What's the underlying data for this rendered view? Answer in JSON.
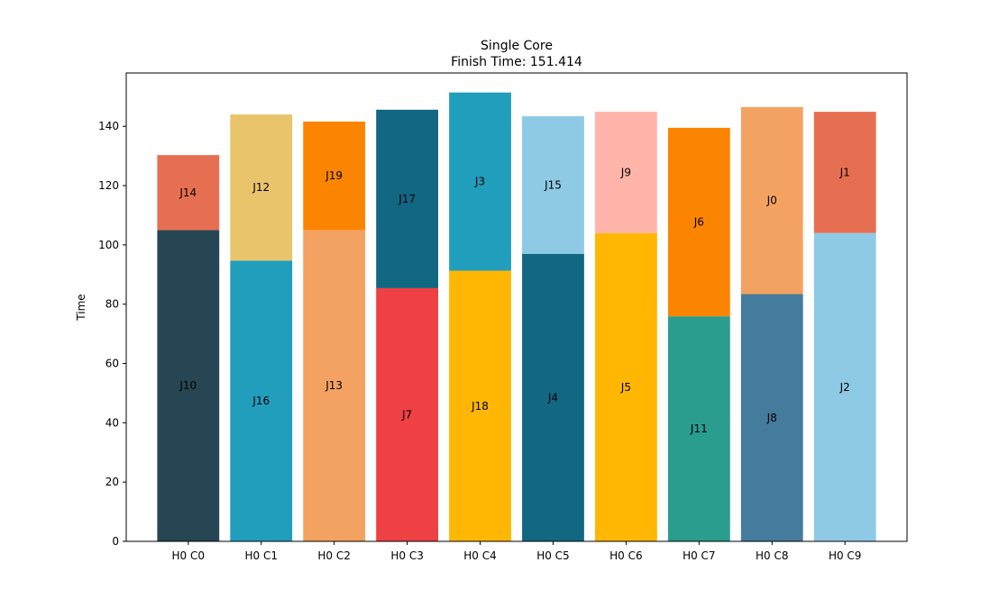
{
  "chart_data": {
    "type": "bar",
    "stacked": true,
    "title": "Single Core",
    "subtitle": "Finish Time: 151.414",
    "xlabel": "",
    "ylabel": "Time",
    "ylim": [
      0,
      158
    ],
    "yticks": [
      0,
      20,
      40,
      60,
      80,
      100,
      120,
      140
    ],
    "grid": false,
    "categories": [
      "H0 C0",
      "H0 C1",
      "H0 C2",
      "H0 C3",
      "H0 C4",
      "H0 C5",
      "H0 C6",
      "H0 C7",
      "H0 C8",
      "H0 C9"
    ],
    "stacks": [
      [
        {
          "label": "J10",
          "start": 0,
          "end": 105.0,
          "color": "#264653"
        },
        {
          "label": "J14",
          "start": 105.0,
          "end": 130.3,
          "color": "#E76F51"
        }
      ],
      [
        {
          "label": "J16",
          "start": 0,
          "end": 94.7,
          "color": "#219EBC"
        },
        {
          "label": "J12",
          "start": 94.7,
          "end": 144.0,
          "color": "#E9C46A"
        }
      ],
      [
        {
          "label": "J13",
          "start": 0,
          "end": 105.0,
          "color": "#F4A261"
        },
        {
          "label": "J19",
          "start": 105.0,
          "end": 141.6,
          "color": "#FB8500"
        }
      ],
      [
        {
          "label": "J7",
          "start": 0,
          "end": 85.4,
          "color": "#EF4044"
        },
        {
          "label": "J17",
          "start": 85.4,
          "end": 145.6,
          "color": "#126782"
        }
      ],
      [
        {
          "label": "J18",
          "start": 0,
          "end": 91.3,
          "color": "#FFB703"
        },
        {
          "label": "J3",
          "start": 91.3,
          "end": 151.414,
          "color": "#219EBC"
        }
      ],
      [
        {
          "label": "J4",
          "start": 0,
          "end": 97.0,
          "color": "#126782"
        },
        {
          "label": "J15",
          "start": 97.0,
          "end": 143.4,
          "color": "#8ECAE6"
        }
      ],
      [
        {
          "label": "J5",
          "start": 0,
          "end": 104.0,
          "color": "#FFB703"
        },
        {
          "label": "J9",
          "start": 104.0,
          "end": 144.9,
          "color": "#FFB4A9"
        }
      ],
      [
        {
          "label": "J11",
          "start": 0,
          "end": 75.9,
          "color": "#2A9D8F"
        },
        {
          "label": "J6",
          "start": 75.9,
          "end": 139.5,
          "color": "#FB8500"
        }
      ],
      [
        {
          "label": "J8",
          "start": 0,
          "end": 83.4,
          "color": "#457B9D"
        },
        {
          "label": "J0",
          "start": 83.4,
          "end": 146.5,
          "color": "#F4A261"
        }
      ],
      [
        {
          "label": "J2",
          "start": 0,
          "end": 104.0,
          "color": "#8ECAE6"
        },
        {
          "label": "J1",
          "start": 104.0,
          "end": 144.9,
          "color": "#E76F51"
        }
      ]
    ]
  }
}
